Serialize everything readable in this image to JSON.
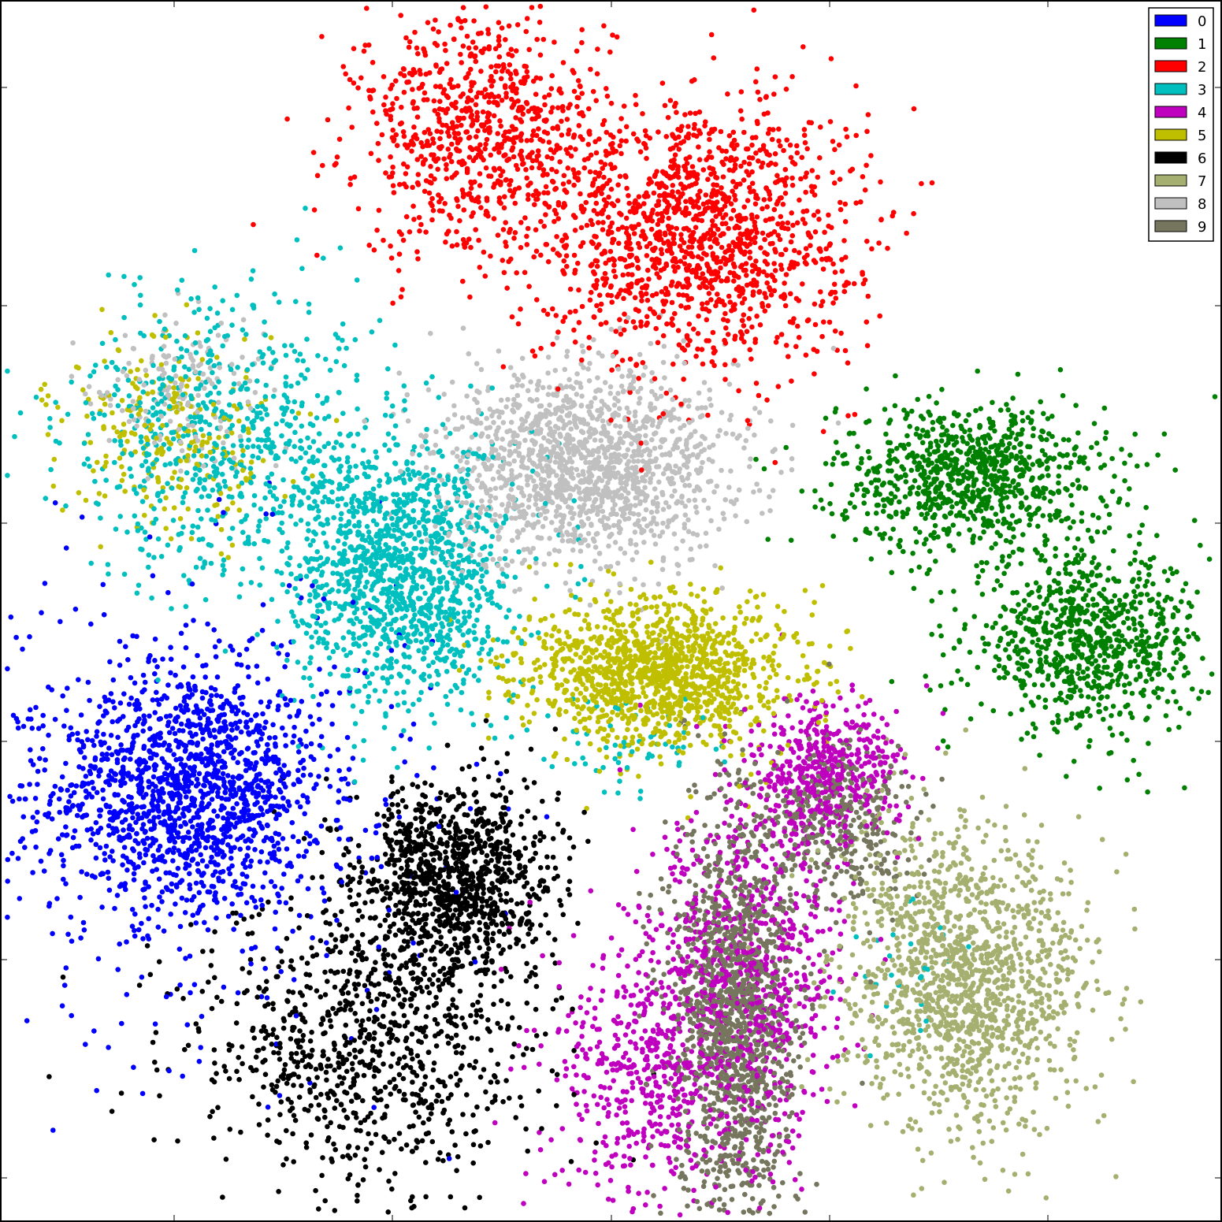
{
  "chart_data": {
    "type": "scatter",
    "title": "",
    "xlabel": "",
    "ylabel": "",
    "xlim": [
      0,
      1
    ],
    "ylim": [
      0,
      1
    ],
    "grid": false,
    "tick_labels": false,
    "legend": {
      "placement": "top-right",
      "entries": [
        {
          "label": "0",
          "color": "#0000ff"
        },
        {
          "label": "1",
          "color": "#008000"
        },
        {
          "label": "2",
          "color": "#ff0000"
        },
        {
          "label": "3",
          "color": "#00bfbf"
        },
        {
          "label": "4",
          "color": "#bf00bf"
        },
        {
          "label": "5",
          "color": "#bfbf00"
        },
        {
          "label": "6",
          "color": "#000000"
        },
        {
          "label": "7",
          "color": "#a5b070"
        },
        {
          "label": "8",
          "color": "#c0c0c0"
        },
        {
          "label": "9",
          "color": "#76765e"
        }
      ]
    },
    "series": [
      {
        "name": "0",
        "color": "#0000ff",
        "clusters": [
          {
            "cx": 0.155,
            "cy": 0.355,
            "sx": 0.055,
            "sy": 0.05,
            "n": 1300
          },
          {
            "cx": 0.16,
            "cy": 0.34,
            "sx": 0.1,
            "sy": 0.1,
            "n": 450
          }
        ]
      },
      {
        "name": "1",
        "color": "#008000",
        "clusters": [
          {
            "cx": 0.795,
            "cy": 0.61,
            "sx": 0.055,
            "sy": 0.03,
            "n": 900
          },
          {
            "cx": 0.89,
            "cy": 0.475,
            "sx": 0.048,
            "sy": 0.035,
            "n": 850
          }
        ]
      },
      {
        "name": "2",
        "color": "#ff0000",
        "clusters": [
          {
            "cx": 0.395,
            "cy": 0.89,
            "sx": 0.052,
            "sy": 0.05,
            "n": 800
          },
          {
            "cx": 0.57,
            "cy": 0.81,
            "sx": 0.065,
            "sy": 0.055,
            "n": 1400
          }
        ]
      },
      {
        "name": "3",
        "color": "#00bfbf",
        "clusters": [
          {
            "cx": 0.33,
            "cy": 0.53,
            "sx": 0.045,
            "sy": 0.055,
            "n": 1300
          },
          {
            "cx": 0.19,
            "cy": 0.64,
            "sx": 0.065,
            "sy": 0.06,
            "n": 700
          },
          {
            "cx": 0.52,
            "cy": 0.39,
            "sx": 0.04,
            "sy": 0.02,
            "n": 60
          },
          {
            "cx": 0.74,
            "cy": 0.21,
            "sx": 0.03,
            "sy": 0.03,
            "n": 25
          }
        ]
      },
      {
        "name": "4",
        "color": "#bf00bf",
        "clusters": [
          {
            "cx": 0.675,
            "cy": 0.365,
            "sx": 0.03,
            "sy": 0.03,
            "n": 500
          },
          {
            "cx": 0.61,
            "cy": 0.2,
            "sx": 0.04,
            "sy": 0.07,
            "n": 800
          },
          {
            "cx": 0.53,
            "cy": 0.12,
            "sx": 0.04,
            "sy": 0.06,
            "n": 500
          }
        ]
      },
      {
        "name": "5",
        "color": "#bfbf00",
        "clusters": [
          {
            "cx": 0.54,
            "cy": 0.45,
            "sx": 0.055,
            "sy": 0.03,
            "n": 1300
          },
          {
            "cx": 0.14,
            "cy": 0.64,
            "sx": 0.045,
            "sy": 0.04,
            "n": 250
          }
        ]
      },
      {
        "name": "6",
        "color": "#000000",
        "clusters": [
          {
            "cx": 0.37,
            "cy": 0.28,
            "sx": 0.04,
            "sy": 0.04,
            "n": 1100
          },
          {
            "cx": 0.3,
            "cy": 0.14,
            "sx": 0.07,
            "sy": 0.06,
            "n": 900
          }
        ]
      },
      {
        "name": "7",
        "color": "#a5b070",
        "clusters": [
          {
            "cx": 0.79,
            "cy": 0.2,
            "sx": 0.05,
            "sy": 0.06,
            "n": 1400
          }
        ]
      },
      {
        "name": "8",
        "color": "#c0c0c0",
        "clusters": [
          {
            "cx": 0.48,
            "cy": 0.62,
            "sx": 0.06,
            "sy": 0.04,
            "n": 1500
          },
          {
            "cx": 0.15,
            "cy": 0.68,
            "sx": 0.04,
            "sy": 0.03,
            "n": 150
          }
        ]
      },
      {
        "name": "9",
        "color": "#76765e",
        "clusters": [
          {
            "cx": 0.6,
            "cy": 0.17,
            "sx": 0.025,
            "sy": 0.09,
            "n": 1400
          },
          {
            "cx": 0.69,
            "cy": 0.32,
            "sx": 0.03,
            "sy": 0.035,
            "n": 350
          }
        ]
      }
    ]
  }
}
